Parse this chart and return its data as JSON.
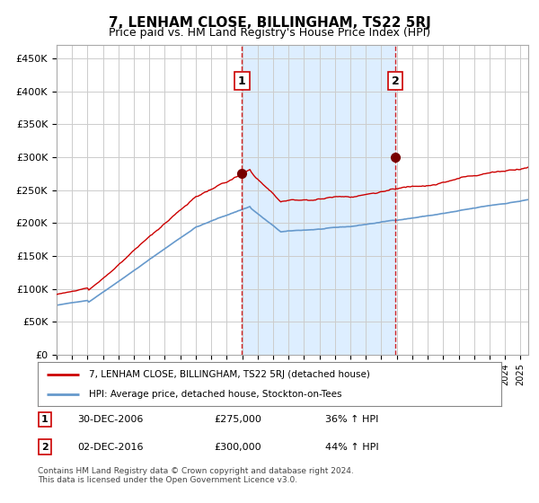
{
  "title": "7, LENHAM CLOSE, BILLINGHAM, TS22 5RJ",
  "subtitle": "Price paid vs. HM Land Registry's House Price Index (HPI)",
  "ylabel_ticks": [
    "£0",
    "£50K",
    "£100K",
    "£150K",
    "£200K",
    "£250K",
    "£300K",
    "£350K",
    "£400K",
    "£450K"
  ],
  "ytick_values": [
    0,
    50000,
    100000,
    150000,
    200000,
    250000,
    300000,
    350000,
    400000,
    450000
  ],
  "ylim": [
    0,
    470000
  ],
  "xlim_start": 1995.0,
  "xlim_end": 2025.5,
  "purchase1_date": 2006.99,
  "purchase1_price": 275000,
  "purchase1_label": "1",
  "purchase2_date": 2016.92,
  "purchase2_price": 300000,
  "purchase2_label": "2",
  "sale_color": "#cc0000",
  "hpi_color": "#6699cc",
  "shade_color": "#ddeeff",
  "grid_color": "#cccccc",
  "bg_color": "#ffffff",
  "legend_sale": "7, LENHAM CLOSE, BILLINGHAM, TS22 5RJ (detached house)",
  "legend_hpi": "HPI: Average price, detached house, Stockton-on-Tees",
  "annotation1": "30-DEC-2006",
  "annotation1_price": "£275,000",
  "annotation1_hpi": "36% ↑ HPI",
  "annotation2": "02-DEC-2016",
  "annotation2_price": "£300,000",
  "annotation2_hpi": "44% ↑ HPI",
  "footer": "Contains HM Land Registry data © Crown copyright and database right 2024.\nThis data is licensed under the Open Government Licence v3.0."
}
